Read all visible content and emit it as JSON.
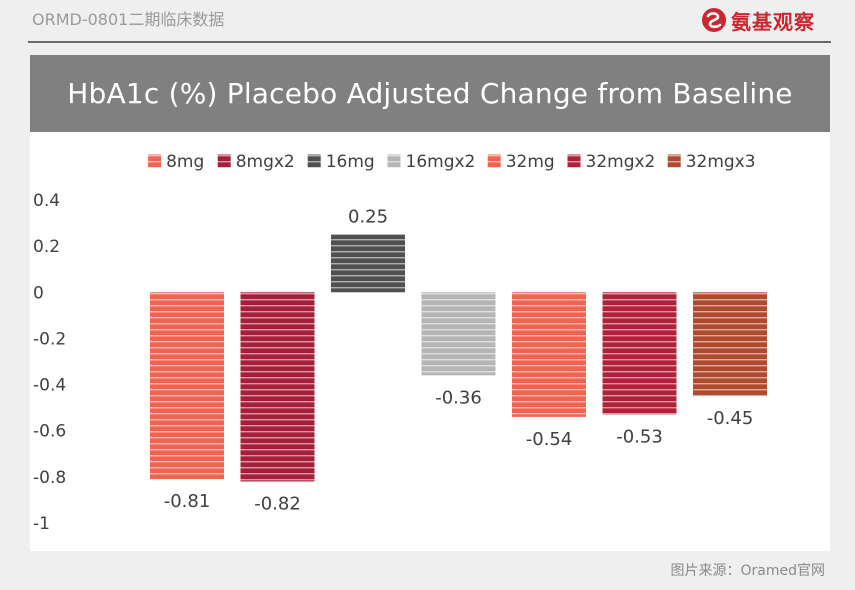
{
  "header": {
    "caption": "ORMD-0801二期临床数据",
    "brand": "氨基观察"
  },
  "chart_data": {
    "type": "bar",
    "title": "HbA1c (%) Placebo Adjusted Change from Baseline",
    "xlabel": "",
    "ylabel": "",
    "ylim": [
      -1,
      0.4
    ],
    "yticks": [
      "0.4",
      "0.2",
      "0",
      "-0.2",
      "-0.4",
      "-0.6",
      "-0.8",
      "-1"
    ],
    "ytick_values": [
      0.4,
      0.2,
      0,
      -0.2,
      -0.4,
      -0.6,
      -0.8,
      -1
    ],
    "legend_position": "top",
    "grid": false,
    "series": [
      {
        "name": "8mg",
        "value": 0.81,
        "value_signed": -0.81,
        "label": "-0.81",
        "color": "#ef6450"
      },
      {
        "name": "8mgx2",
        "value": 0.82,
        "value_signed": -0.82,
        "label": "-0.82",
        "color": "#a51e3a"
      },
      {
        "name": "16mg",
        "value": 0.25,
        "value_signed": 0.25,
        "label": "0.25",
        "color": "#505050"
      },
      {
        "name": "16mgx2",
        "value": 0.36,
        "value_signed": -0.36,
        "label": "-0.36",
        "color": "#b5b5b5"
      },
      {
        "name": "32mg",
        "value": 0.54,
        "value_signed": -0.54,
        "label": "-0.54",
        "color": "#f0634f"
      },
      {
        "name": "32mgx2",
        "value": 0.53,
        "value_signed": -0.53,
        "label": "-0.53",
        "color": "#b02038"
      },
      {
        "name": "32mgx3",
        "value": 0.45,
        "value_signed": -0.45,
        "label": "-0.45",
        "color": "#b04a2e"
      }
    ]
  },
  "footer": {
    "source": "图片来源：Oramed官网"
  }
}
